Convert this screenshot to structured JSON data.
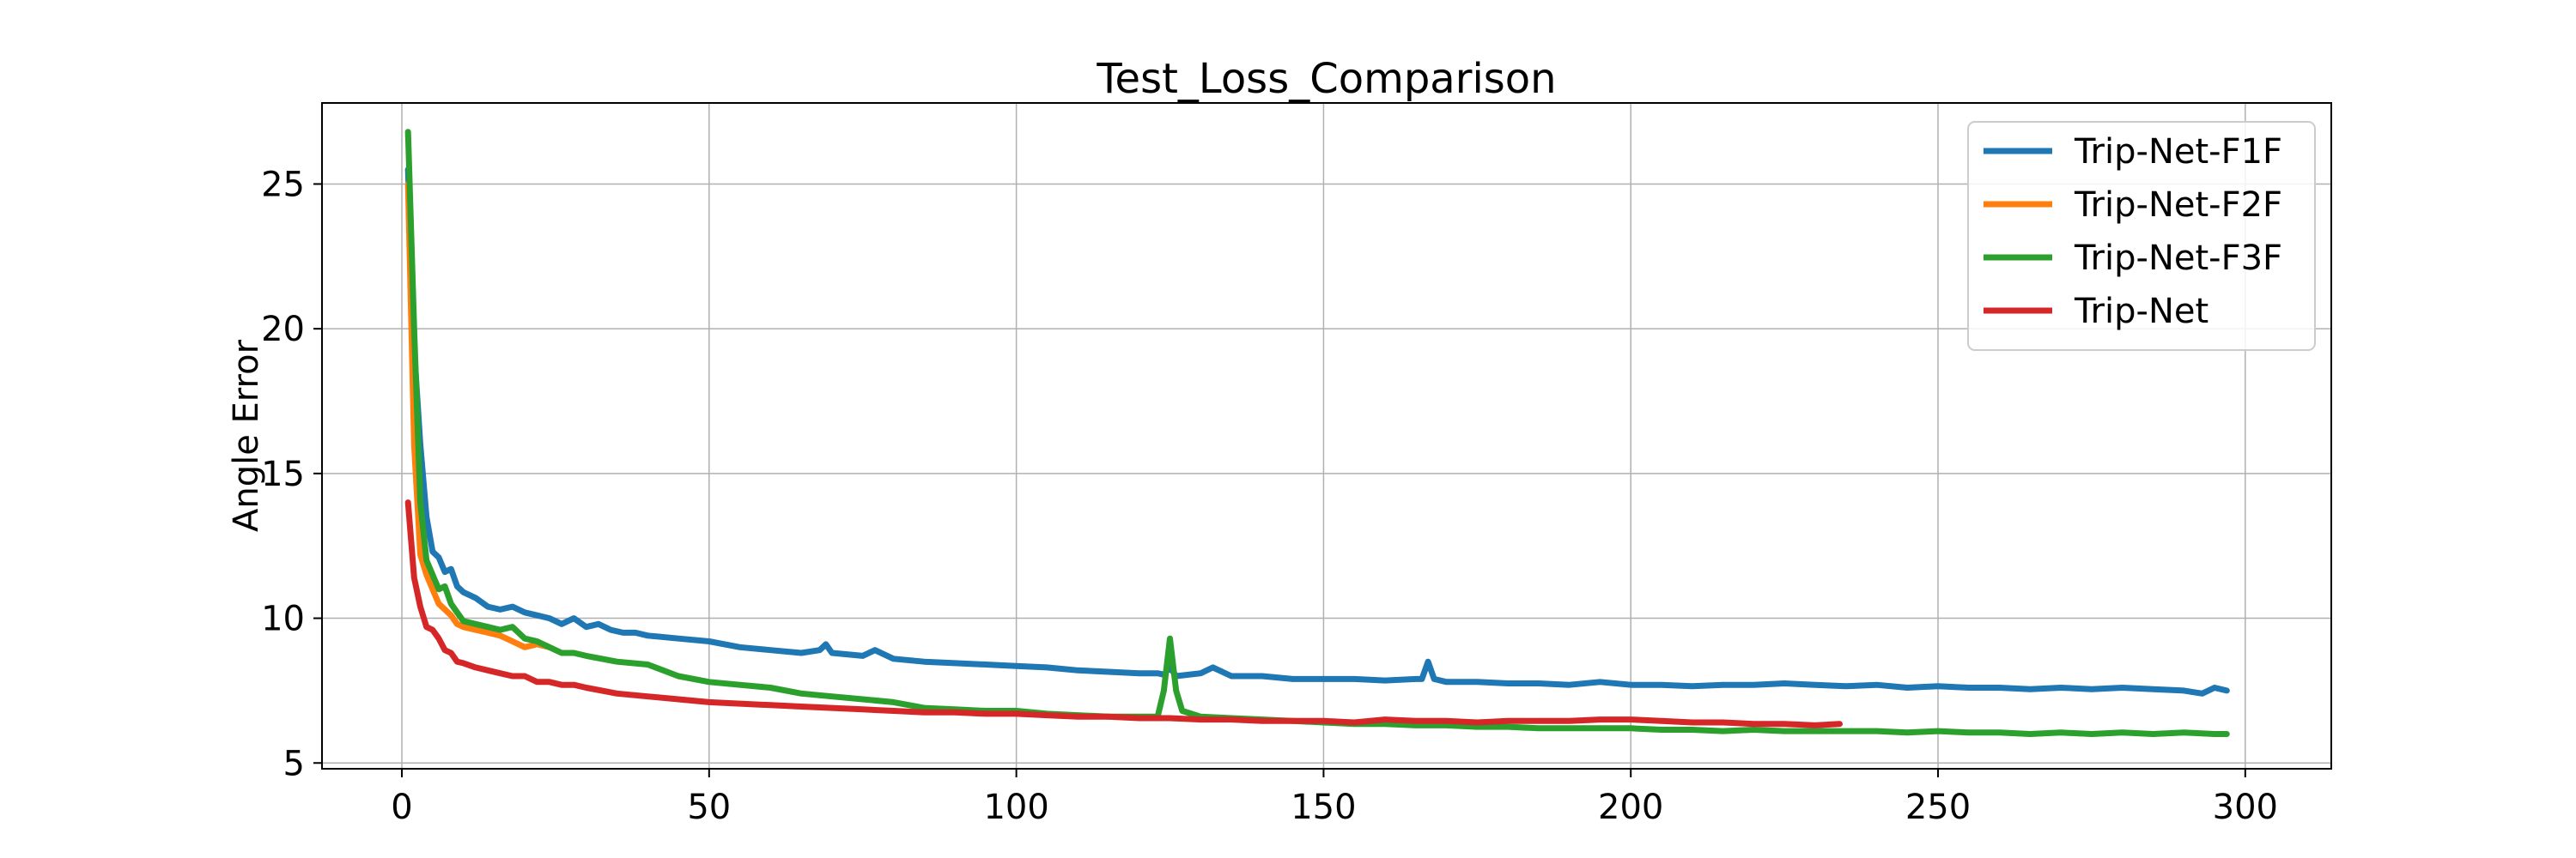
{
  "chart_data": {
    "type": "line",
    "title": "Test_Loss_Comparison",
    "xlabel": "",
    "ylabel": "Angle Error",
    "xlim": [
      -13,
      314
    ],
    "ylim": [
      4.8,
      27.8
    ],
    "xticks": [
      0,
      50,
      100,
      150,
      200,
      250,
      300
    ],
    "yticks": [
      5,
      10,
      15,
      20,
      25
    ],
    "grid": true,
    "legend_position": "top-right",
    "series": [
      {
        "name": "Trip-Net-F1F",
        "color": "#1f77b4",
        "points": [
          [
            1,
            25.5
          ],
          [
            2,
            19.3
          ],
          [
            3,
            16
          ],
          [
            4,
            13.5
          ],
          [
            5,
            12.3
          ],
          [
            6,
            12.1
          ],
          [
            7,
            11.6
          ],
          [
            8,
            11.7
          ],
          [
            9,
            11.1
          ],
          [
            10,
            10.9
          ],
          [
            12,
            10.7
          ],
          [
            14,
            10.4
          ],
          [
            16,
            10.3
          ],
          [
            18,
            10.4
          ],
          [
            20,
            10.2
          ],
          [
            22,
            10.1
          ],
          [
            24,
            10.0
          ],
          [
            26,
            9.8
          ],
          [
            28,
            10.0
          ],
          [
            30,
            9.7
          ],
          [
            32,
            9.8
          ],
          [
            34,
            9.6
          ],
          [
            36,
            9.5
          ],
          [
            38,
            9.5
          ],
          [
            40,
            9.4
          ],
          [
            45,
            9.3
          ],
          [
            50,
            9.2
          ],
          [
            55,
            9.0
          ],
          [
            60,
            8.9
          ],
          [
            65,
            8.8
          ],
          [
            68,
            8.9
          ],
          [
            69,
            9.1
          ],
          [
            70,
            8.8
          ],
          [
            75,
            8.7
          ],
          [
            77,
            8.9
          ],
          [
            80,
            8.6
          ],
          [
            85,
            8.5
          ],
          [
            90,
            8.45
          ],
          [
            95,
            8.4
          ],
          [
            100,
            8.35
          ],
          [
            105,
            8.3
          ],
          [
            110,
            8.2
          ],
          [
            115,
            8.15
          ],
          [
            120,
            8.1
          ],
          [
            123,
            8.1
          ],
          [
            124,
            8.05
          ],
          [
            125,
            8.3
          ],
          [
            126,
            8.0
          ],
          [
            130,
            8.1
          ],
          [
            132,
            8.3
          ],
          [
            135,
            8.0
          ],
          [
            140,
            8.0
          ],
          [
            145,
            7.9
          ],
          [
            150,
            7.9
          ],
          [
            155,
            7.9
          ],
          [
            160,
            7.85
          ],
          [
            165,
            7.9
          ],
          [
            166,
            7.9
          ],
          [
            167,
            8.5
          ],
          [
            168,
            7.9
          ],
          [
            170,
            7.8
          ],
          [
            175,
            7.8
          ],
          [
            180,
            7.75
          ],
          [
            185,
            7.75
          ],
          [
            190,
            7.7
          ],
          [
            195,
            7.8
          ],
          [
            200,
            7.7
          ],
          [
            205,
            7.7
          ],
          [
            210,
            7.65
          ],
          [
            215,
            7.7
          ],
          [
            220,
            7.7
          ],
          [
            225,
            7.75
          ],
          [
            230,
            7.7
          ],
          [
            235,
            7.65
          ],
          [
            240,
            7.7
          ],
          [
            245,
            7.6
          ],
          [
            250,
            7.65
          ],
          [
            255,
            7.6
          ],
          [
            260,
            7.6
          ],
          [
            265,
            7.55
          ],
          [
            270,
            7.6
          ],
          [
            275,
            7.55
          ],
          [
            280,
            7.6
          ],
          [
            285,
            7.55
          ],
          [
            290,
            7.5
          ],
          [
            293,
            7.4
          ],
          [
            295,
            7.6
          ],
          [
            297,
            7.5
          ]
        ]
      },
      {
        "name": "Trip-Net-F2F",
        "color": "#ff7f0e",
        "points": [
          [
            1,
            25.0
          ],
          [
            2,
            16
          ],
          [
            3,
            12.2
          ],
          [
            4,
            11.5
          ],
          [
            5,
            11.0
          ],
          [
            6,
            10.5
          ],
          [
            7,
            10.3
          ],
          [
            8,
            10.1
          ],
          [
            9,
            9.8
          ],
          [
            10,
            9.7
          ],
          [
            12,
            9.6
          ],
          [
            14,
            9.5
          ],
          [
            16,
            9.4
          ],
          [
            18,
            9.2
          ],
          [
            20,
            9.0
          ],
          [
            22,
            9.1
          ],
          [
            24,
            9.0
          ]
        ]
      },
      {
        "name": "Trip-Net-F3F",
        "color": "#2ca02c",
        "points": [
          [
            1,
            26.8
          ],
          [
            2,
            20
          ],
          [
            3,
            14
          ],
          [
            4,
            12
          ],
          [
            5,
            11.5
          ],
          [
            6,
            11.0
          ],
          [
            7,
            11.1
          ],
          [
            8,
            10.5
          ],
          [
            9,
            10.2
          ],
          [
            10,
            9.9
          ],
          [
            12,
            9.8
          ],
          [
            14,
            9.7
          ],
          [
            16,
            9.6
          ],
          [
            18,
            9.7
          ],
          [
            20,
            9.3
          ],
          [
            22,
            9.2
          ],
          [
            24,
            9.0
          ],
          [
            26,
            8.8
          ],
          [
            28,
            8.8
          ],
          [
            30,
            8.7
          ],
          [
            35,
            8.5
          ],
          [
            40,
            8.4
          ],
          [
            45,
            8.0
          ],
          [
            50,
            7.8
          ],
          [
            55,
            7.7
          ],
          [
            60,
            7.6
          ],
          [
            65,
            7.4
          ],
          [
            70,
            7.3
          ],
          [
            75,
            7.2
          ],
          [
            80,
            7.1
          ],
          [
            85,
            6.9
          ],
          [
            90,
            6.85
          ],
          [
            95,
            6.8
          ],
          [
            100,
            6.8
          ],
          [
            105,
            6.7
          ],
          [
            110,
            6.65
          ],
          [
            115,
            6.6
          ],
          [
            120,
            6.6
          ],
          [
            123,
            6.6
          ],
          [
            124,
            7.5
          ],
          [
            125,
            9.3
          ],
          [
            126,
            7.5
          ],
          [
            127,
            6.8
          ],
          [
            130,
            6.6
          ],
          [
            135,
            6.55
          ],
          [
            140,
            6.5
          ],
          [
            145,
            6.45
          ],
          [
            150,
            6.4
          ],
          [
            155,
            6.35
          ],
          [
            160,
            6.35
          ],
          [
            165,
            6.3
          ],
          [
            170,
            6.3
          ],
          [
            175,
            6.25
          ],
          [
            180,
            6.25
          ],
          [
            185,
            6.2
          ],
          [
            190,
            6.2
          ],
          [
            195,
            6.2
          ],
          [
            200,
            6.2
          ],
          [
            205,
            6.15
          ],
          [
            210,
            6.15
          ],
          [
            215,
            6.1
          ],
          [
            220,
            6.15
          ],
          [
            225,
            6.1
          ],
          [
            230,
            6.1
          ],
          [
            235,
            6.1
          ],
          [
            240,
            6.1
          ],
          [
            245,
            6.05
          ],
          [
            250,
            6.1
          ],
          [
            255,
            6.05
          ],
          [
            260,
            6.05
          ],
          [
            265,
            6.0
          ],
          [
            270,
            6.05
          ],
          [
            275,
            6.0
          ],
          [
            280,
            6.05
          ],
          [
            285,
            6.0
          ],
          [
            290,
            6.05
          ],
          [
            295,
            6.0
          ],
          [
            297,
            6.0
          ]
        ]
      },
      {
        "name": "Trip-Net",
        "color": "#d62728",
        "points": [
          [
            1,
            14.0
          ],
          [
            2,
            11.4
          ],
          [
            3,
            10.4
          ],
          [
            4,
            9.7
          ],
          [
            5,
            9.6
          ],
          [
            6,
            9.3
          ],
          [
            7,
            8.9
          ],
          [
            8,
            8.8
          ],
          [
            9,
            8.5
          ],
          [
            10,
            8.45
          ],
          [
            12,
            8.3
          ],
          [
            14,
            8.2
          ],
          [
            16,
            8.1
          ],
          [
            18,
            8.0
          ],
          [
            20,
            8.0
          ],
          [
            22,
            7.8
          ],
          [
            24,
            7.8
          ],
          [
            26,
            7.7
          ],
          [
            28,
            7.7
          ],
          [
            30,
            7.6
          ],
          [
            35,
            7.4
          ],
          [
            40,
            7.3
          ],
          [
            45,
            7.2
          ],
          [
            50,
            7.1
          ],
          [
            55,
            7.05
          ],
          [
            60,
            7.0
          ],
          [
            65,
            6.95
          ],
          [
            70,
            6.9
          ],
          [
            75,
            6.85
          ],
          [
            80,
            6.8
          ],
          [
            85,
            6.75
          ],
          [
            90,
            6.75
          ],
          [
            95,
            6.7
          ],
          [
            100,
            6.7
          ],
          [
            105,
            6.65
          ],
          [
            110,
            6.6
          ],
          [
            115,
            6.6
          ],
          [
            120,
            6.55
          ],
          [
            125,
            6.55
          ],
          [
            130,
            6.5
          ],
          [
            135,
            6.5
          ],
          [
            140,
            6.45
          ],
          [
            145,
            6.45
          ],
          [
            150,
            6.45
          ],
          [
            155,
            6.4
          ],
          [
            160,
            6.5
          ],
          [
            165,
            6.45
          ],
          [
            170,
            6.45
          ],
          [
            175,
            6.4
          ],
          [
            180,
            6.45
          ],
          [
            185,
            6.45
          ],
          [
            190,
            6.45
          ],
          [
            195,
            6.5
          ],
          [
            200,
            6.5
          ],
          [
            205,
            6.45
          ],
          [
            210,
            6.4
          ],
          [
            215,
            6.4
          ],
          [
            220,
            6.35
          ],
          [
            225,
            6.35
          ],
          [
            230,
            6.3
          ],
          [
            234,
            6.35
          ]
        ]
      }
    ]
  }
}
